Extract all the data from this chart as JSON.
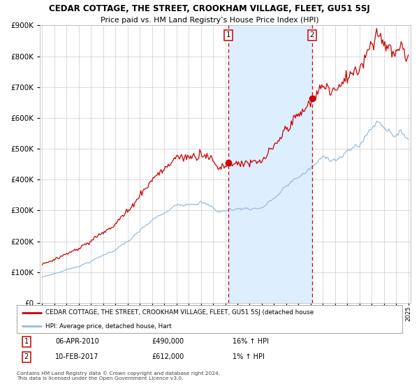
{
  "title": "CEDAR COTTAGE, THE STREET, CROOKHAM VILLAGE, FLEET, GU51 5SJ",
  "subtitle": "Price paid vs. HM Land Registry’s House Price Index (HPI)",
  "red_label": "CEDAR COTTAGE, THE STREET, CROOKHAM VILLAGE, FLEET, GU51 5SJ (detached house",
  "blue_label": "HPI: Average price, detached house, Hart",
  "transaction1_date": "06-APR-2010",
  "transaction1_price": 490000,
  "transaction1_hpi": "16% ↑ HPI",
  "transaction2_date": "10-FEB-2017",
  "transaction2_price": 612000,
  "transaction2_hpi": "1% ↑ HPI",
  "footer": "Contains HM Land Registry data © Crown copyright and database right 2024.\nThis data is licensed under the Open Government Licence v3.0.",
  "ylim": [
    0,
    900000
  ],
  "year_start": 1995,
  "year_end": 2025,
  "transaction1_year": 2010.27,
  "transaction2_year": 2017.12,
  "grid_color": "#cccccc",
  "shade_color": "#ddeeff",
  "red_color": "#cc0000",
  "blue_color": "#99bbdd"
}
